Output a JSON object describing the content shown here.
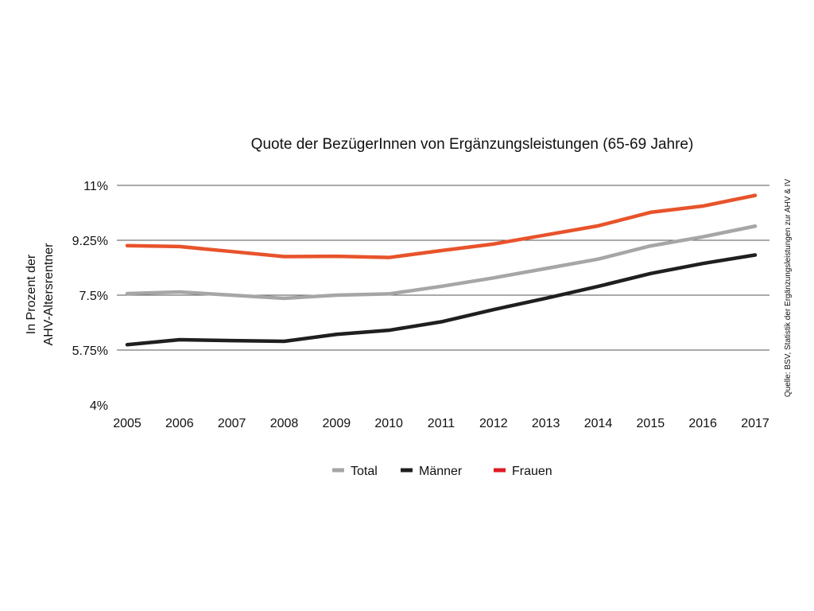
{
  "chart_data": {
    "type": "line",
    "title": "Quote der BezügerInnen von Ergänzungsleistungen (65-69 Jahre)",
    "ylabel_lines": [
      "In Prozent der",
      "AHV-Altersrentner"
    ],
    "source": "Quelle: BSV, Statistik der Ergänzungsleistungen zur AHV & IV",
    "ylim": [
      4,
      11
    ],
    "yticks": [
      {
        "value": 4,
        "label": "4%"
      },
      {
        "value": 5.75,
        "label": "5.75%"
      },
      {
        "value": 7.5,
        "label": "7.5%"
      },
      {
        "value": 9.25,
        "label": "9.25%"
      },
      {
        "value": 11,
        "label": "11%"
      }
    ],
    "x": [
      "2005",
      "2006",
      "2007",
      "2008",
      "2009",
      "2010",
      "2011",
      "2012",
      "2013",
      "2014",
      "2015",
      "2016",
      "2017"
    ],
    "series": [
      {
        "name": "Total",
        "key": "total",
        "color": "#a6a6a6",
        "values": [
          7.55,
          7.6,
          7.5,
          7.4,
          7.5,
          7.54,
          7.78,
          8.05,
          8.35,
          8.65,
          9.07,
          9.36,
          9.7
        ]
      },
      {
        "name": "Männer",
        "key": "maenner",
        "color": "#1f1f1f",
        "values": [
          5.92,
          6.08,
          6.05,
          6.03,
          6.25,
          6.38,
          6.65,
          7.04,
          7.4,
          7.78,
          8.19,
          8.51,
          8.78
        ]
      },
      {
        "name": "Frauen",
        "key": "frauen",
        "color": "#e8532b",
        "values": [
          9.08,
          9.05,
          8.89,
          8.73,
          8.74,
          8.7,
          8.92,
          9.13,
          9.42,
          9.71,
          10.14,
          10.34,
          10.68
        ]
      }
    ],
    "legend": [
      {
        "label": "Total",
        "color": "#a6a6a6"
      },
      {
        "label": "Männer",
        "color": "#1f1f1f"
      },
      {
        "label": "Frauen",
        "color": "#e01b22"
      }
    ],
    "grid": true,
    "legend_position": "bottom-center"
  }
}
